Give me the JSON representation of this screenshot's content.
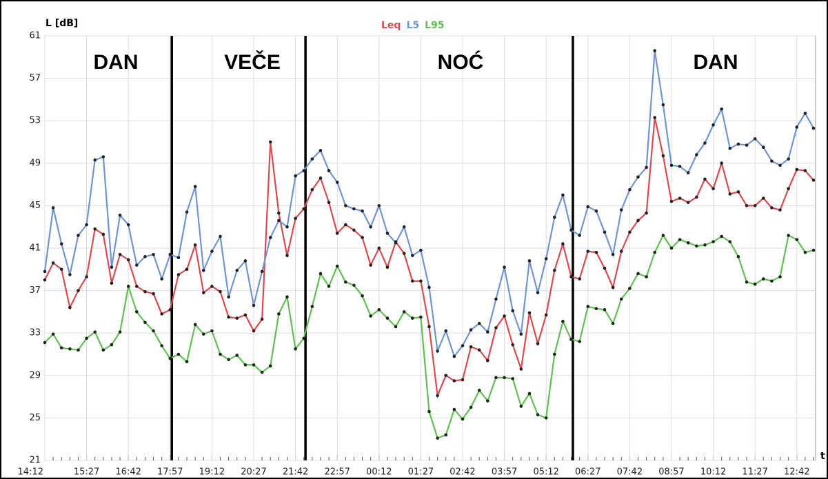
{
  "chart_data": {
    "type": "line",
    "y_label": "L [dB]",
    "x_label": "t",
    "annotations": [
      "DAN",
      "VEČE",
      "NOĆ",
      "DAN"
    ],
    "categories": [
      "14:12",
      null,
      null,
      null,
      null,
      "15:27",
      null,
      null,
      null,
      null,
      "16:42",
      null,
      null,
      null,
      null,
      "17:57",
      null,
      null,
      null,
      null,
      "19:12",
      null,
      null,
      null,
      null,
      "20:27",
      null,
      null,
      null,
      null,
      "21:42",
      null,
      null,
      null,
      null,
      "22:57",
      null,
      null,
      null,
      null,
      "00:12",
      null,
      null,
      null,
      null,
      "01:27",
      null,
      null,
      null,
      null,
      "02:42",
      null,
      null,
      null,
      null,
      "03:57",
      null,
      null,
      null,
      null,
      "05:12",
      null,
      null,
      null,
      null,
      "06:27",
      null,
      null,
      null,
      null,
      "07:42",
      null,
      null,
      null,
      null,
      "08:57",
      null,
      null,
      null,
      null,
      "10:12",
      null,
      null,
      null,
      null,
      "11:27",
      null,
      null,
      null,
      null,
      "12:42",
      null,
      null
    ],
    "series": [
      {
        "name": "Leq",
        "color": "#e0474c",
        "values": [
          38.0,
          39.6,
          39.0,
          35.4,
          37.0,
          38.3,
          42.8,
          42.3,
          37.7,
          40.4,
          39.9,
          37.4,
          36.9,
          36.7,
          34.8,
          35.2,
          38.5,
          39.0,
          41.3,
          36.8,
          37.4,
          36.9,
          34.5,
          34.4,
          34.7,
          33.2,
          34.3,
          51.0,
          44.3,
          40.3,
          43.8,
          44.7,
          46.5,
          47.6,
          45.3,
          42.4,
          43.2,
          42.7,
          42.0,
          39.4,
          41.0,
          39.2,
          41.6,
          40.5,
          37.9,
          37.9,
          33.6,
          27.1,
          29.0,
          28.5,
          28.6,
          31.7,
          31.4,
          30.4,
          33.5,
          34.6,
          31.9,
          29.6,
          34.9,
          32.0,
          34.7,
          38.9,
          41.4,
          38.3,
          38.1,
          40.7,
          40.6,
          39.1,
          37.3,
          40.7,
          42.5,
          43.6,
          44.3,
          53.3,
          49.7,
          45.4,
          45.7,
          45.3,
          45.8,
          47.5,
          46.6,
          49.0,
          46.1,
          46.3,
          45.0,
          45.0,
          45.7,
          44.8,
          44.6,
          46.6,
          48.4,
          48.3,
          47.4
        ]
      },
      {
        "name": "L5",
        "color": "#6f94d6",
        "values": [
          38.8,
          44.8,
          41.4,
          38.5,
          42.2,
          43.2,
          49.3,
          49.6,
          39.2,
          44.1,
          43.2,
          39.4,
          40.2,
          40.4,
          38.1,
          40.4,
          40.1,
          44.4,
          46.8,
          38.9,
          40.7,
          42.1,
          36.4,
          38.9,
          39.8,
          35.6,
          38.8,
          42.0,
          43.6,
          43.0,
          47.8,
          48.3,
          49.4,
          50.2,
          48.3,
          47.2,
          45.0,
          44.7,
          44.5,
          43.0,
          45.0,
          42.4,
          41.5,
          43.0,
          40.3,
          40.8,
          37.3,
          31.3,
          33.2,
          30.8,
          31.8,
          33.3,
          33.9,
          33.1,
          36.2,
          39.2,
          35.1,
          32.9,
          39.8,
          36.8,
          40.0,
          43.9,
          46.0,
          42.7,
          42.2,
          44.9,
          44.5,
          42.5,
          40.4,
          44.6,
          46.5,
          47.7,
          48.6,
          59.6,
          54.5,
          48.8,
          48.7,
          48.1,
          49.8,
          50.9,
          52.6,
          54.1,
          50.4,
          50.8,
          50.7,
          51.3,
          50.5,
          49.2,
          48.8,
          49.4,
          52.4,
          53.7,
          52.3
        ]
      },
      {
        "name": "L95",
        "color": "#5cc24d",
        "values": [
          32.1,
          32.9,
          31.6,
          31.5,
          31.4,
          32.5,
          33.1,
          31.4,
          31.9,
          33.1,
          37.4,
          35.0,
          34.0,
          33.2,
          31.8,
          30.6,
          31.0,
          30.3,
          33.8,
          32.9,
          33.2,
          31.0,
          30.5,
          30.9,
          30.0,
          30.0,
          29.3,
          29.9,
          34.8,
          36.4,
          31.5,
          32.5,
          35.5,
          38.6,
          37.4,
          39.3,
          37.8,
          37.5,
          36.5,
          34.6,
          35.2,
          34.4,
          33.6,
          35.0,
          34.4,
          34.5,
          25.6,
          23.1,
          23.4,
          25.8,
          24.9,
          26.0,
          27.6,
          26.6,
          28.8,
          28.8,
          28.7,
          26.1,
          27.3,
          25.3,
          25.0,
          31.0,
          34.1,
          32.4,
          32.2,
          35.5,
          35.3,
          35.2,
          33.9,
          36.2,
          37.2,
          38.6,
          38.3,
          40.6,
          42.2,
          41.0,
          41.8,
          41.5,
          41.2,
          41.3,
          41.6,
          42.1,
          41.6,
          40.2,
          37.8,
          37.6,
          38.1,
          37.9,
          38.3,
          42.2,
          41.8,
          40.6,
          40.8
        ]
      }
    ],
    "ylim": [
      21,
      61
    ],
    "yticks": [
      21,
      25,
      29,
      33,
      37,
      41,
      45,
      49,
      53,
      57,
      61
    ],
    "grid": true
  }
}
